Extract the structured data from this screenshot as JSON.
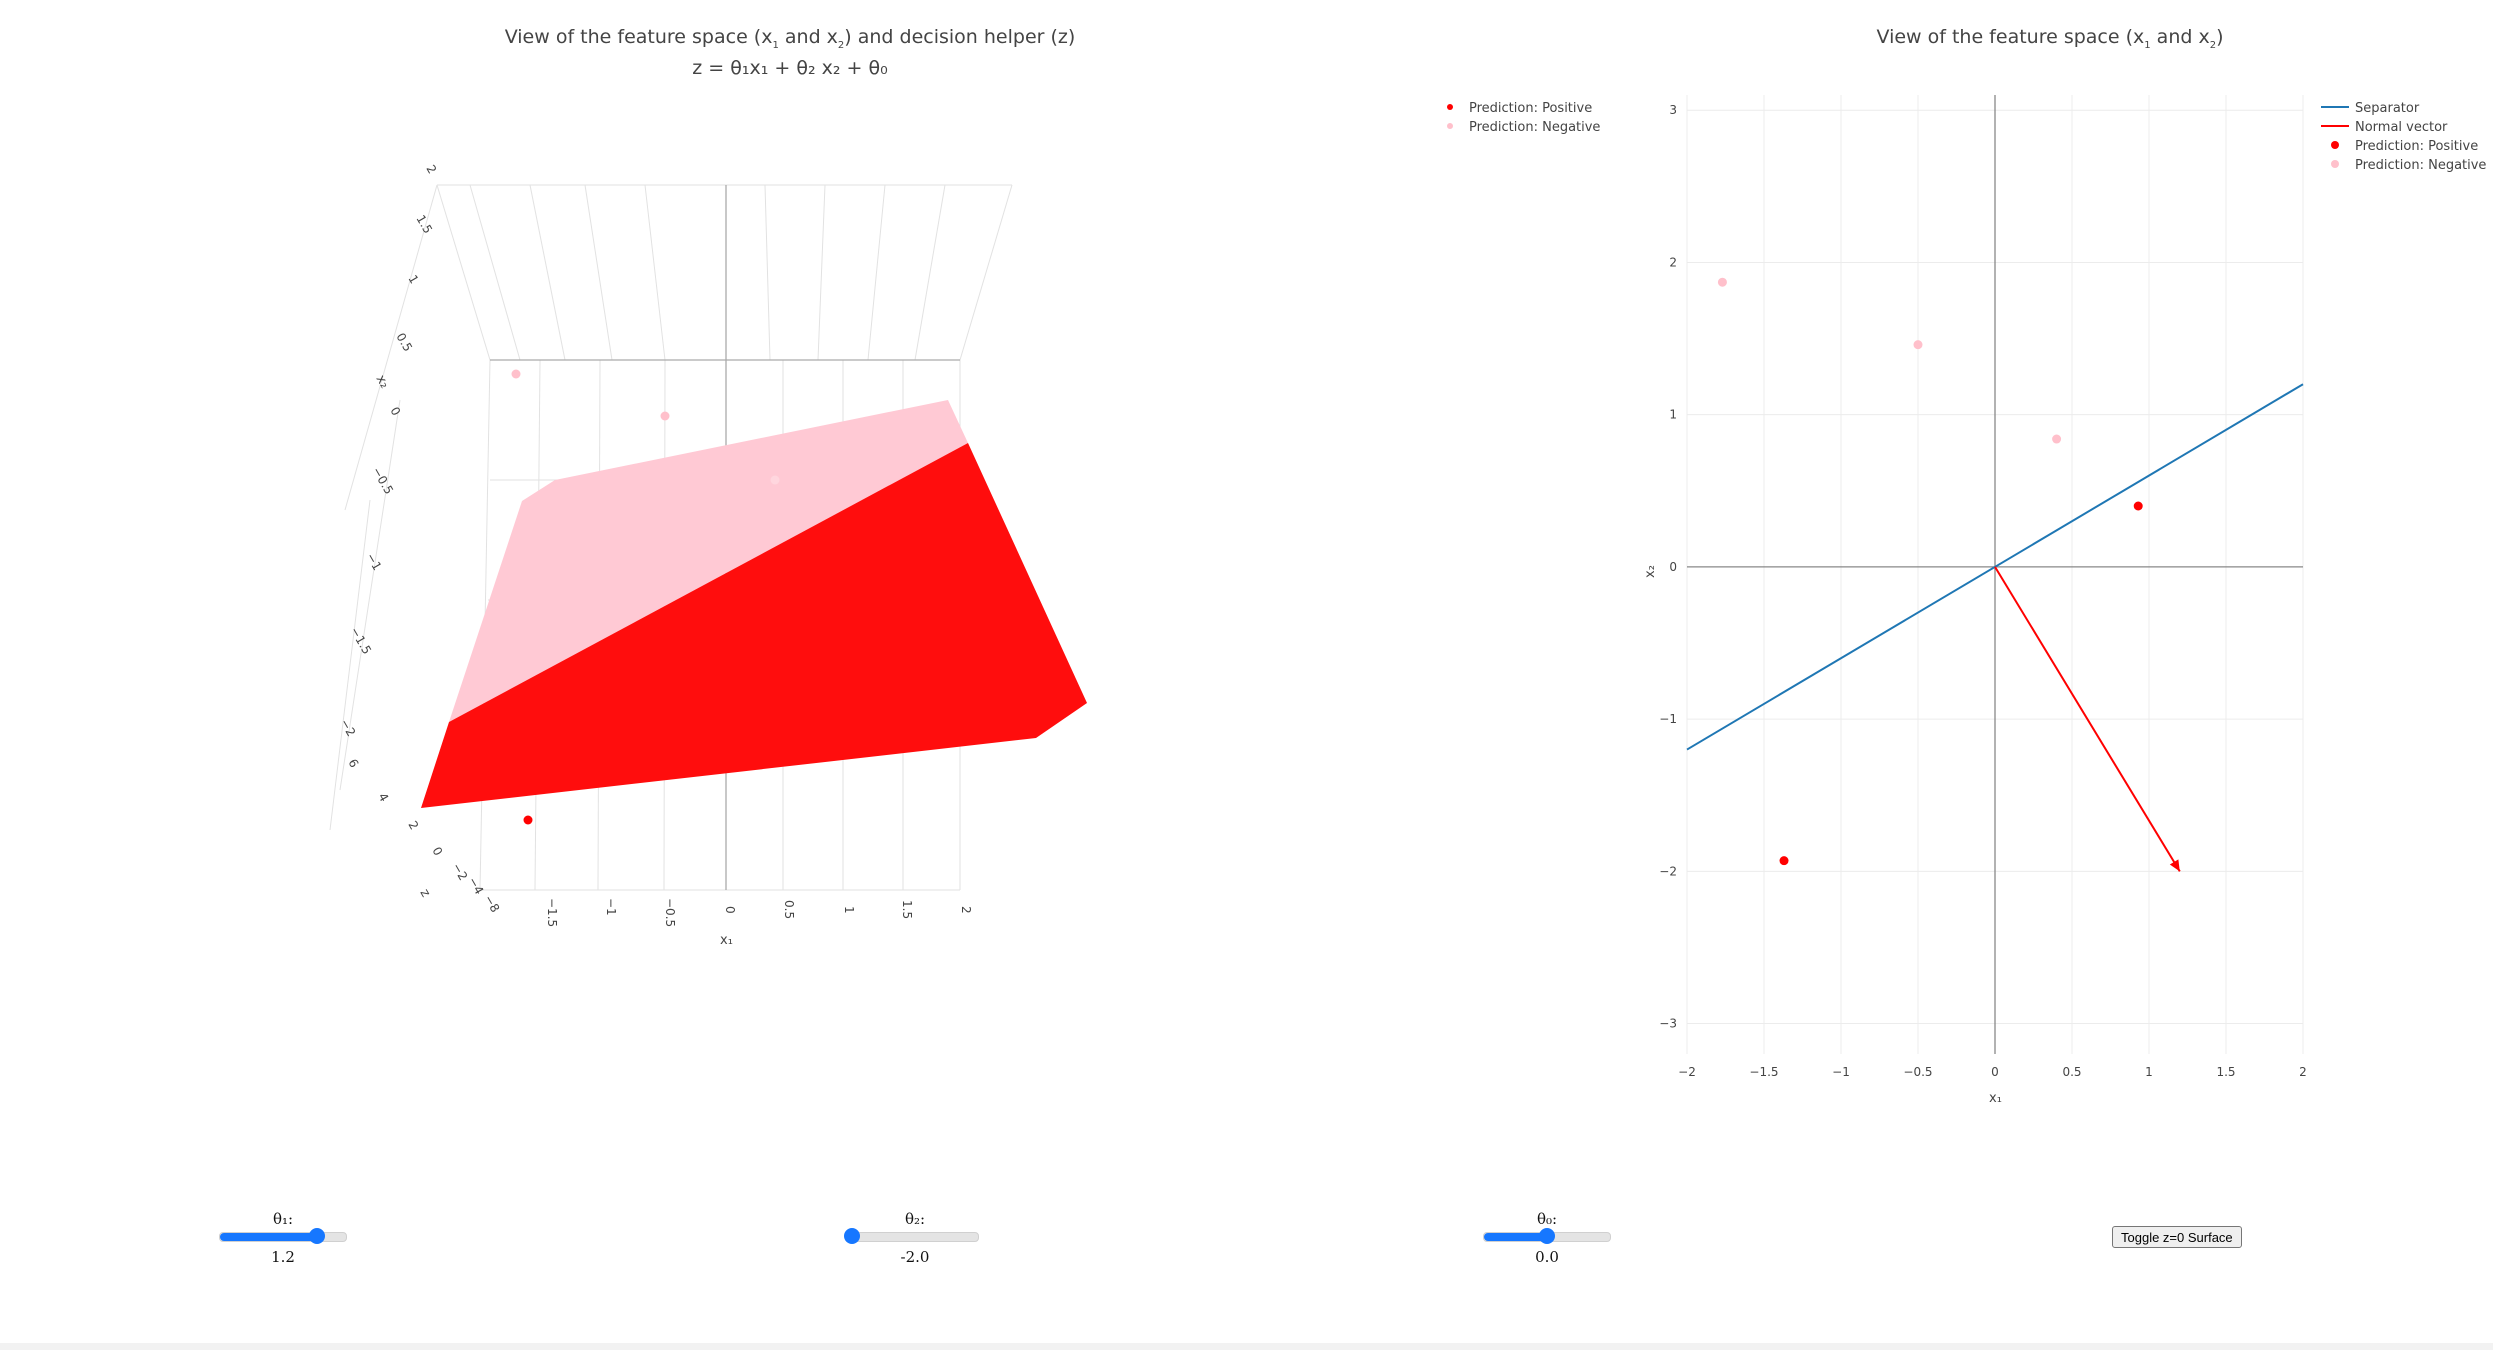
{
  "left_plot": {
    "title_line1_a": "View of the feature space (x",
    "title_line1_sub1": "1",
    "title_line1_b": " and x",
    "title_line1_sub2": "2",
    "title_line1_c": ") and decision helper (z)",
    "title_line2": "z = θ₁x₁ + θ₂ x₂ + θ₀",
    "legend": [
      "Prediction: Positive",
      "Prediction: Negative"
    ],
    "x_axis_label": "x₁",
    "y_axis_label": "x₂",
    "z_axis_label": "z",
    "x_ticks": [
      "−1.5",
      "−1",
      "−0.5",
      "0",
      "0.5",
      "1",
      "1.5",
      "2"
    ],
    "y_ticks": [
      "2",
      "1.5",
      "1",
      "0.5",
      "0",
      "−0.5",
      "−1",
      "−1.5",
      "−2"
    ],
    "z_ticks": [
      "6",
      "4",
      "2",
      "0",
      "−2",
      "−4",
      "−8"
    ]
  },
  "right_plot": {
    "title_a": "View of the feature space (x",
    "title_sub1": "1",
    "title_b": " and x",
    "title_sub2": "2",
    "title_c": ")",
    "legend": [
      "Separator",
      "Normal vector",
      "Prediction: Positive",
      "Prediction: Negative"
    ]
  },
  "colors": {
    "positive": "#ff0000",
    "negative": "#ffc0cb",
    "separator": "#1f77b4",
    "normal": "#ff0000",
    "slider": "#1677ff"
  },
  "chart_data": {
    "type": "scatter",
    "x": [
      -1.37,
      0.93,
      -1.77,
      -0.5,
      0.4
    ],
    "y": [
      -1.93,
      0.4,
      1.87,
      1.46,
      0.84
    ],
    "series": [
      {
        "name": "Prediction: Positive",
        "points": [
          [
            -1.37,
            -1.93
          ],
          [
            0.93,
            0.4
          ]
        ]
      },
      {
        "name": "Prediction: Negative",
        "points": [
          [
            -1.77,
            1.87
          ],
          [
            -0.5,
            1.46
          ],
          [
            0.4,
            0.84
          ]
        ]
      }
    ],
    "separator": {
      "name": "Separator",
      "from": [
        -2,
        -1.2
      ],
      "to": [
        2,
        1.2
      ]
    },
    "normal_vector": {
      "name": "Normal vector",
      "from": [
        0,
        0
      ],
      "to": [
        1.2,
        -2.0
      ]
    },
    "xlabel": "x₁",
    "ylabel": "x₂",
    "xlim": [
      -2,
      2
    ],
    "ylim": [
      -3.2,
      3.1
    ],
    "x_ticks": [
      -2,
      -1.5,
      -1,
      -0.5,
      0,
      0.5,
      1,
      1.5,
      2
    ],
    "y_ticks": [
      -3,
      -2,
      -1,
      0,
      1,
      2,
      3
    ],
    "x_tick_labels": [
      "−2",
      "−1.5",
      "−1",
      "−0.5",
      "0",
      "0.5",
      "1",
      "1.5",
      "2"
    ],
    "y_tick_labels": [
      "−3",
      "−2",
      "−1",
      "0",
      "1",
      "2",
      "3"
    ],
    "grid": true,
    "legend_position": "top-right"
  },
  "controls": {
    "theta1": {
      "label": "θ₁:",
      "value": "1.2",
      "fraction": 0.77
    },
    "theta2": {
      "label": "θ₂:",
      "value": "-2.0",
      "fraction": 0.0
    },
    "theta0": {
      "label": "θ₀:",
      "value": "0.0",
      "fraction": 0.5
    },
    "toggle_button": "Toggle z=0 Surface"
  }
}
